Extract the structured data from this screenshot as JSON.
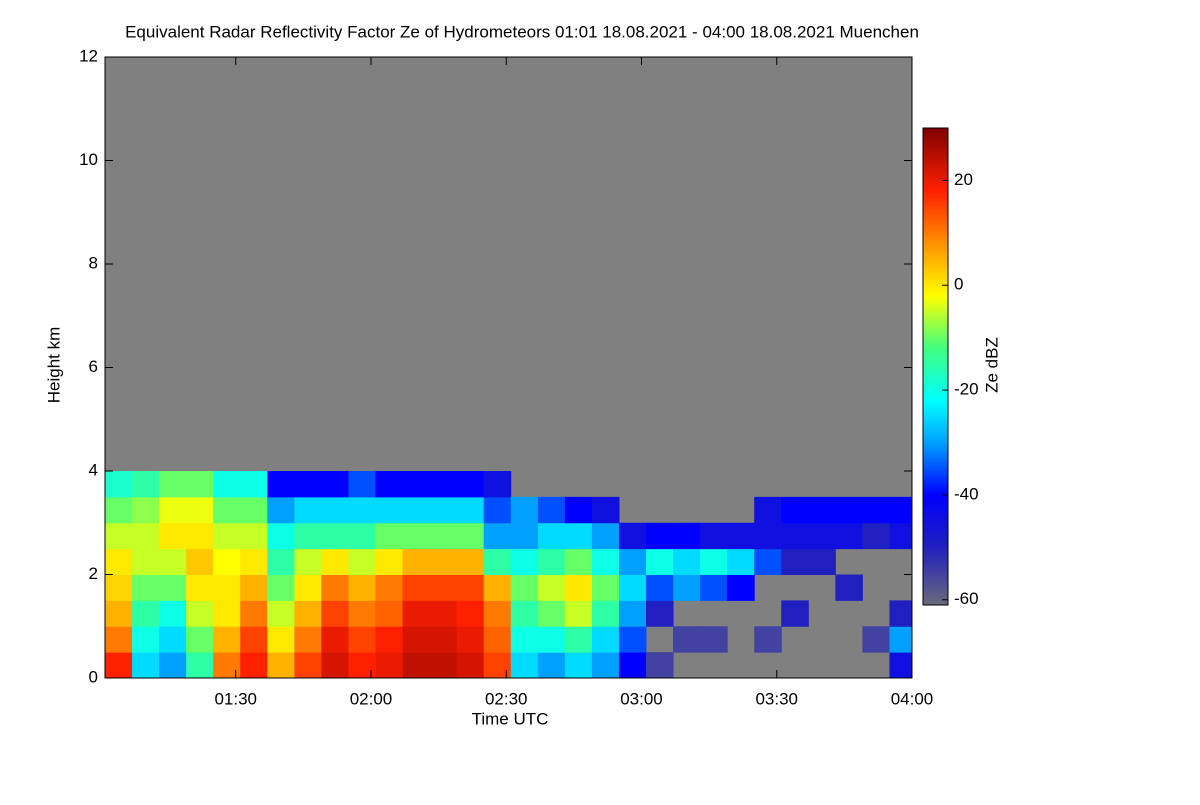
{
  "chart_data": {
    "type": "heatmap",
    "title": "Equivalent Radar Reflectivity Factor Ze of Hydrometeors   01:01 18.08.2021 - 04:00 18.08.2021 Muenchen",
    "x_label": "Time UTC",
    "y_label": "Height km",
    "colorbar_label": "Ze dBZ",
    "xlim": [
      61,
      240
    ],
    "xticks": [
      {
        "value": 90,
        "label": "01:30"
      },
      {
        "value": 120,
        "label": "02:00"
      },
      {
        "value": 150,
        "label": "02:30"
      },
      {
        "value": 180,
        "label": "03:00"
      },
      {
        "value": 210,
        "label": "03:30"
      },
      {
        "value": 240,
        "label": "04:00"
      }
    ],
    "ylim": [
      0,
      12
    ],
    "yticks": [
      0,
      2,
      4,
      6,
      8,
      10,
      12
    ],
    "zlim": [
      -61,
      30
    ],
    "zticks": [
      -60,
      -40,
      -20,
      0,
      20
    ],
    "background_color": "#808080",
    "colormap": [
      [
        -61,
        "#6a6a7a"
      ],
      [
        -50,
        "#2020c0"
      ],
      [
        -40,
        "#0000ff"
      ],
      [
        -30,
        "#00a0ff"
      ],
      [
        -22,
        "#00ffff"
      ],
      [
        -12,
        "#40ff80"
      ],
      [
        -2,
        "#ffff00"
      ],
      [
        8,
        "#ff9000"
      ],
      [
        18,
        "#ff2000"
      ],
      [
        30,
        "#800000"
      ]
    ],
    "x": [
      64,
      70,
      76,
      82,
      88,
      94,
      100,
      106,
      112,
      118,
      124,
      130,
      136,
      142,
      148,
      154,
      160,
      166,
      172,
      178,
      184,
      190,
      196,
      202,
      208,
      214,
      220,
      226,
      232,
      238
    ],
    "y": [
      0.25,
      0.75,
      1.25,
      1.75,
      2.25,
      2.75,
      3.25,
      3.75,
      4.25
    ],
    "z": [
      [
        18,
        10,
        5,
        2,
        0,
        -5,
        -10,
        -18,
        null
      ],
      [
        -25,
        -20,
        -15,
        -10,
        -5,
        -5,
        -8,
        -15,
        null
      ],
      [
        -30,
        -25,
        -20,
        -10,
        -5,
        0,
        -3,
        -10,
        null
      ],
      [
        -15,
        -10,
        -5,
        0,
        3,
        0,
        -3,
        -10,
        null
      ],
      [
        10,
        5,
        0,
        0,
        -2,
        -5,
        -10,
        -20,
        null
      ],
      [
        18,
        15,
        10,
        5,
        0,
        -5,
        -10,
        -20,
        null
      ],
      [
        5,
        0,
        -5,
        -10,
        -15,
        -20,
        -30,
        -40,
        null
      ],
      [
        15,
        10,
        5,
        0,
        -5,
        -15,
        -25,
        -40,
        null
      ],
      [
        22,
        20,
        15,
        10,
        0,
        -15,
        -25,
        -40,
        null
      ],
      [
        18,
        15,
        10,
        5,
        -5,
        -15,
        -25,
        -35,
        null
      ],
      [
        20,
        18,
        12,
        10,
        0,
        -10,
        -25,
        -40,
        null
      ],
      [
        24,
        22,
        20,
        15,
        5,
        -10,
        -25,
        -40,
        null
      ],
      [
        24,
        22,
        20,
        15,
        5,
        -10,
        -25,
        -40,
        null
      ],
      [
        22,
        20,
        18,
        15,
        5,
        -10,
        -25,
        -40,
        null
      ],
      [
        15,
        12,
        10,
        5,
        -15,
        -30,
        -35,
        -45,
        null
      ],
      [
        -25,
        -20,
        -15,
        -10,
        -20,
        -30,
        -30,
        null,
        null
      ],
      [
        -30,
        -20,
        -10,
        -5,
        -15,
        -25,
        -35,
        null,
        null
      ],
      [
        -25,
        -15,
        -5,
        0,
        -10,
        -25,
        -40,
        null,
        null
      ],
      [
        -30,
        -25,
        -15,
        -10,
        -20,
        -30,
        -45,
        null,
        null
      ],
      [
        -40,
        -35,
        -30,
        -25,
        -30,
        -45,
        null,
        null,
        null
      ],
      [
        -55,
        null,
        -50,
        -35,
        -20,
        -40,
        null,
        null,
        null
      ],
      [
        null,
        -55,
        null,
        -30,
        -25,
        -40,
        null,
        null,
        null
      ],
      [
        null,
        -55,
        null,
        -35,
        -20,
        -45,
        null,
        null,
        null
      ],
      [
        null,
        null,
        null,
        -40,
        -25,
        -45,
        null,
        null,
        null
      ],
      [
        null,
        -55,
        null,
        null,
        -35,
        -45,
        -45,
        null,
        null
      ],
      [
        null,
        null,
        -50,
        null,
        -50,
        -45,
        -40,
        null,
        null
      ],
      [
        null,
        null,
        null,
        null,
        -50,
        -45,
        -40,
        null,
        null
      ],
      [
        null,
        null,
        null,
        -50,
        null,
        -45,
        -40,
        null,
        null
      ],
      [
        null,
        -55,
        null,
        null,
        null,
        -50,
        -40,
        null,
        null
      ],
      [
        -45,
        -30,
        -50,
        null,
        null,
        -45,
        -40,
        null,
        null
      ]
    ]
  }
}
